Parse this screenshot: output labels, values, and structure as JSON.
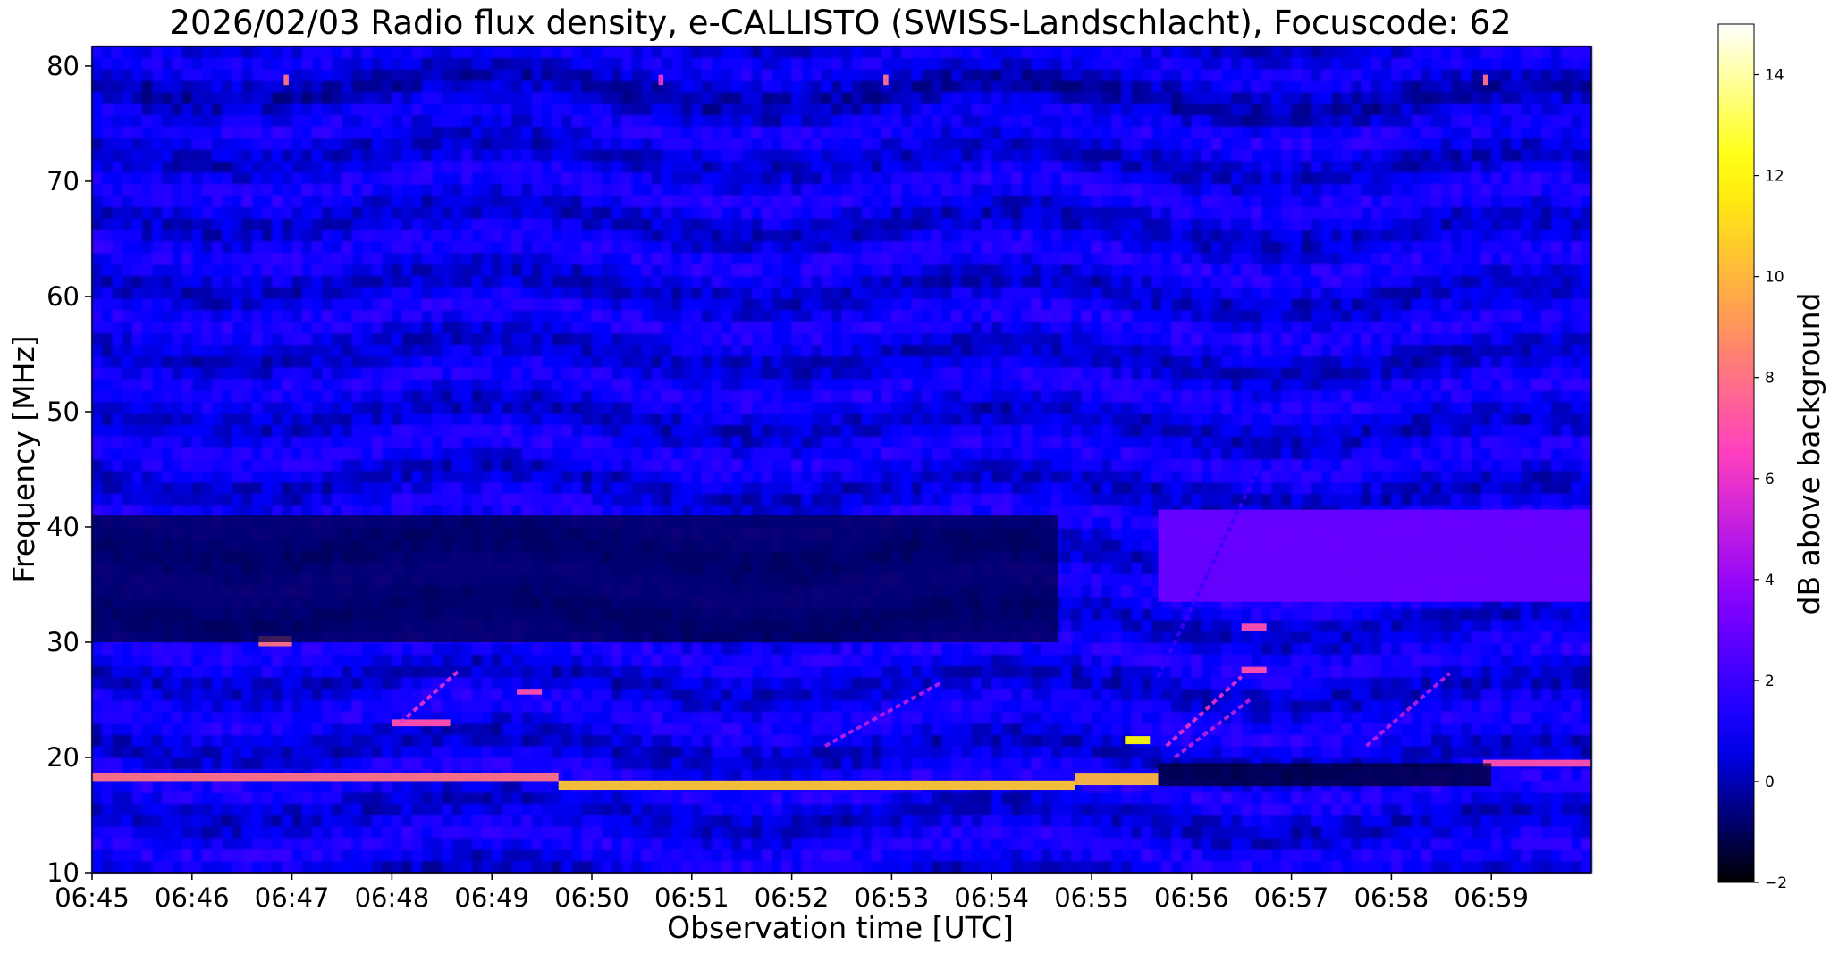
{
  "chart_data": {
    "type": "heatmap",
    "title": "2026/02/03  Radio flux density, e-CALLISTO (SWISS-Landschlacht), Focuscode: 62",
    "xlabel": "Observation time [UTC]",
    "ylabel": "Frequency [MHz]",
    "x_range": [
      "06:45",
      "07:00"
    ],
    "ylim": [
      10,
      81.7
    ],
    "x_ticks": [
      "06:45",
      "06:46",
      "06:47",
      "06:48",
      "06:49",
      "06:50",
      "06:51",
      "06:52",
      "06:53",
      "06:54",
      "06:55",
      "06:56",
      "06:57",
      "06:58",
      "06:59"
    ],
    "y_ticks": [
      10,
      20,
      30,
      40,
      50,
      60,
      70,
      80
    ],
    "colorbar": {
      "label": "dB above background",
      "range": [
        -2,
        15
      ],
      "ticks": [
        -2,
        0,
        2,
        4,
        6,
        8,
        10,
        12,
        14
      ],
      "colormap": "gnuplot2",
      "colors": [
        "#000000",
        "#0000ff",
        "#8a00ff",
        "#ff3fbf",
        "#ffa050",
        "#ffff00",
        "#ffffff"
      ]
    },
    "grid": false,
    "background_level": 0.8,
    "features": [
      {
        "kind": "horizontal_band",
        "f_center": 18.3,
        "f_width": 0.7,
        "t_start": "06:45:00",
        "t_end": "06:49:40",
        "level": 8
      },
      {
        "kind": "horizontal_band",
        "f_center": 17.6,
        "f_width": 0.8,
        "t_start": "06:49:40",
        "t_end": "06:54:50",
        "level": 10.5
      },
      {
        "kind": "horizontal_band",
        "f_center": 18.1,
        "f_width": 1.0,
        "t_start": "06:54:50",
        "t_end": "06:55:40",
        "level": 10
      },
      {
        "kind": "horizontal_band",
        "f_center": 19.5,
        "f_width": 0.6,
        "t_start": "06:58:55",
        "t_end": "07:00:00",
        "level": 7
      },
      {
        "kind": "horizontal_band",
        "f_center": 30.1,
        "f_width": 0.9,
        "t_start": "06:46:40",
        "t_end": "06:47:00",
        "level": 8
      },
      {
        "kind": "horizontal_band",
        "f_center": 23.0,
        "f_width": 0.6,
        "t_start": "06:48:00",
        "t_end": "06:48:35",
        "level": 7
      },
      {
        "kind": "horizontal_band",
        "f_center": 25.7,
        "f_width": 0.5,
        "t_start": "06:49:15",
        "t_end": "06:49:30",
        "level": 7
      },
      {
        "kind": "horizontal_band",
        "f_center": 21.5,
        "f_width": 0.7,
        "t_start": "06:55:20",
        "t_end": "06:55:35",
        "level": 12
      },
      {
        "kind": "horizontal_band",
        "f_center": 31.3,
        "f_width": 0.6,
        "t_start": "06:56:30",
        "t_end": "06:56:45",
        "level": 7
      },
      {
        "kind": "horizontal_band",
        "f_center": 27.6,
        "f_width": 0.5,
        "t_start": "06:56:30",
        "t_end": "06:56:45",
        "level": 7
      },
      {
        "kind": "horizontal_band",
        "f_center": 78.8,
        "f_width": 0.9,
        "t_start": "06:46:55",
        "t_end": "06:46:58",
        "level": 8
      },
      {
        "kind": "horizontal_band",
        "f_center": 78.8,
        "f_width": 0.9,
        "t_start": "06:52:55",
        "t_end": "06:52:58",
        "level": 8
      },
      {
        "kind": "horizontal_band",
        "f_center": 78.8,
        "f_width": 0.9,
        "t_start": "06:58:55",
        "t_end": "06:58:58",
        "level": 8
      },
      {
        "kind": "horizontal_band",
        "f_center": 78.8,
        "f_width": 0.9,
        "t_start": "06:50:40",
        "t_end": "06:50:43",
        "level": 6
      },
      {
        "kind": "horizontal_band",
        "f_center": 35.5,
        "f_width": 11.0,
        "t_start": "06:45:00",
        "t_end": "06:54:40",
        "level": -1.2
      },
      {
        "kind": "horizontal_band",
        "f_center": 37.5,
        "f_width": 8.0,
        "t_start": "06:55:40",
        "t_end": "07:00:00",
        "level": 3
      },
      {
        "kind": "horizontal_band",
        "f_center": 18.5,
        "f_width": 2.0,
        "t_start": "06:55:40",
        "t_end": "06:59:00",
        "level": -1.5
      },
      {
        "kind": "drift",
        "t_start": "06:48:05",
        "t_end": "06:48:40",
        "f_start": 23,
        "f_end": 27.5,
        "level": 6
      },
      {
        "kind": "drift",
        "t_start": "06:52:20",
        "t_end": "06:53:30",
        "f_start": 21,
        "f_end": 26.5,
        "level": 5
      },
      {
        "kind": "drift",
        "t_start": "06:55:45",
        "t_end": "06:56:30",
        "f_start": 21,
        "f_end": 27,
        "level": 6
      },
      {
        "kind": "drift",
        "t_start": "06:55:50",
        "t_end": "06:56:35",
        "f_start": 20,
        "f_end": 25,
        "level": 5
      },
      {
        "kind": "drift",
        "t_start": "06:57:45",
        "t_end": "06:58:35",
        "f_start": 21,
        "f_end": 27.3,
        "level": 5
      },
      {
        "kind": "drift",
        "t_start": "06:55:40",
        "t_end": "06:56:40",
        "f_start": 27,
        "f_end": 45,
        "level": 2
      }
    ]
  }
}
